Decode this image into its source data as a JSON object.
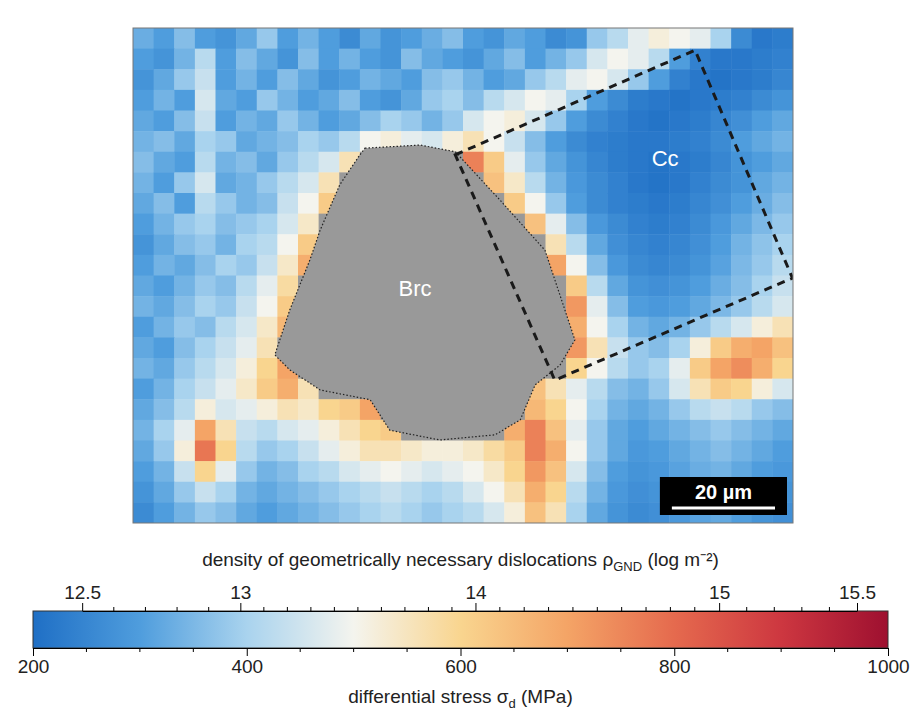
{
  "chart_data": {
    "type": "heatmap",
    "xlim": [
      0,
      128
    ],
    "ylim": [
      0,
      96
    ],
    "tick_labels": false,
    "cells": [
      [
        330,
        300,
        360,
        300,
        280,
        320,
        380,
        300,
        340,
        300,
        260,
        320,
        280,
        300,
        330,
        360,
        300,
        280,
        320,
        300,
        260,
        280,
        380,
        420,
        480,
        520,
        500,
        480,
        400,
        260,
        220,
        230
      ],
      [
        300,
        280,
        340,
        420,
        300,
        360,
        320,
        280,
        360,
        300,
        340,
        300,
        280,
        360,
        320,
        300,
        280,
        320,
        360,
        300,
        340,
        380,
        460,
        500,
        480,
        420,
        300,
        240,
        220,
        220,
        230,
        240
      ],
      [
        280,
        320,
        380,
        440,
        300,
        340,
        300,
        360,
        320,
        280,
        300,
        340,
        320,
        300,
        360,
        380,
        340,
        300,
        320,
        380,
        420,
        480,
        500,
        460,
        380,
        300,
        240,
        220,
        210,
        220,
        230,
        250
      ],
      [
        300,
        340,
        300,
        460,
        320,
        300,
        380,
        340,
        300,
        320,
        360,
        300,
        280,
        320,
        380,
        400,
        360,
        420,
        460,
        500,
        480,
        400,
        300,
        260,
        230,
        220,
        210,
        220,
        230,
        240,
        260,
        280
      ],
      [
        320,
        300,
        360,
        440,
        300,
        340,
        320,
        380,
        340,
        300,
        320,
        360,
        400,
        380,
        340,
        380,
        460,
        500,
        520,
        460,
        380,
        300,
        260,
        240,
        220,
        210,
        220,
        230,
        250,
        270,
        300,
        320
      ],
      [
        340,
        360,
        320,
        400,
        380,
        320,
        340,
        360,
        400,
        380,
        420,
        500,
        520,
        480,
        460,
        520,
        560,
        500,
        440,
        360,
        300,
        260,
        240,
        230,
        220,
        220,
        230,
        240,
        260,
        300,
        320,
        340
      ],
      [
        360,
        320,
        300,
        420,
        340,
        360,
        320,
        380,
        420,
        460,
        560,
        null,
        null,
        null,
        null,
        null,
        760,
        620,
        480,
        380,
        320,
        280,
        250,
        230,
        220,
        210,
        220,
        230,
        250,
        280,
        300,
        320
      ],
      [
        340,
        300,
        380,
        460,
        320,
        340,
        380,
        420,
        460,
        560,
        null,
        null,
        null,
        null,
        null,
        null,
        null,
        640,
        540,
        420,
        340,
        290,
        260,
        240,
        220,
        210,
        220,
        240,
        260,
        280,
        320,
        340
      ],
      [
        320,
        360,
        300,
        420,
        380,
        340,
        360,
        440,
        500,
        620,
        null,
        null,
        null,
        null,
        null,
        null,
        null,
        null,
        620,
        500,
        380,
        300,
        260,
        240,
        230,
        220,
        230,
        250,
        270,
        300,
        330,
        360
      ],
      [
        300,
        340,
        380,
        400,
        360,
        380,
        400,
        460,
        540,
        null,
        null,
        null,
        null,
        null,
        null,
        null,
        null,
        null,
        null,
        640,
        480,
        360,
        290,
        260,
        240,
        230,
        240,
        260,
        290,
        320,
        350,
        380
      ],
      [
        280,
        320,
        360,
        380,
        340,
        400,
        420,
        500,
        620,
        null,
        null,
        null,
        null,
        null,
        null,
        null,
        null,
        null,
        null,
        null,
        560,
        420,
        320,
        270,
        250,
        240,
        250,
        270,
        300,
        340,
        370,
        400
      ],
      [
        300,
        340,
        320,
        360,
        400,
        380,
        440,
        540,
        680,
        null,
        null,
        null,
        null,
        null,
        null,
        null,
        null,
        null,
        null,
        null,
        700,
        500,
        360,
        290,
        260,
        250,
        260,
        280,
        310,
        350,
        380,
        420
      ],
      [
        320,
        300,
        340,
        380,
        360,
        420,
        480,
        580,
        null,
        null,
        null,
        null,
        null,
        null,
        null,
        null,
        null,
        null,
        null,
        null,
        null,
        620,
        420,
        320,
        280,
        270,
        280,
        300,
        330,
        360,
        400,
        440
      ],
      [
        340,
        320,
        360,
        400,
        380,
        440,
        500,
        620,
        null,
        null,
        null,
        null,
        null,
        null,
        null,
        null,
        null,
        null,
        null,
        null,
        null,
        720,
        480,
        360,
        300,
        290,
        300,
        320,
        350,
        380,
        420,
        460
      ],
      [
        300,
        340,
        380,
        360,
        420,
        460,
        540,
        660,
        null,
        null,
        null,
        null,
        null,
        null,
        null,
        null,
        null,
        null,
        null,
        null,
        null,
        680,
        500,
        400,
        340,
        320,
        340,
        380,
        420,
        460,
        520,
        560
      ],
      [
        320,
        300,
        360,
        400,
        440,
        480,
        560,
        null,
        null,
        null,
        null,
        null,
        null,
        null,
        null,
        null,
        null,
        null,
        null,
        null,
        null,
        720,
        560,
        440,
        380,
        360,
        400,
        520,
        620,
        680,
        700,
        640
      ],
      [
        340,
        320,
        380,
        420,
        460,
        520,
        600,
        700,
        null,
        null,
        null,
        null,
        null,
        null,
        null,
        null,
        null,
        null,
        null,
        null,
        null,
        600,
        500,
        420,
        380,
        400,
        480,
        620,
        700,
        740,
        680,
        600
      ],
      [
        300,
        340,
        400,
        440,
        480,
        540,
        620,
        680,
        560,
        null,
        null,
        null,
        null,
        null,
        null,
        null,
        null,
        null,
        null,
        640,
        560,
        480,
        420,
        360,
        340,
        380,
        460,
        560,
        620,
        600,
        520,
        460
      ],
      [
        320,
        360,
        420,
        520,
        460,
        480,
        520,
        560,
        540,
        600,
        620,
        700,
        null,
        null,
        null,
        null,
        null,
        null,
        null,
        660,
        600,
        500,
        400,
        340,
        320,
        340,
        380,
        420,
        440,
        420,
        380,
        360
      ],
      [
        340,
        400,
        480,
        700,
        560,
        440,
        420,
        460,
        480,
        520,
        560,
        600,
        620,
        null,
        null,
        null,
        null,
        null,
        680,
        760,
        640,
        480,
        380,
        320,
        300,
        320,
        340,
        360,
        380,
        360,
        340,
        320
      ],
      [
        320,
        380,
        520,
        780,
        600,
        420,
        380,
        400,
        440,
        480,
        520,
        560,
        560,
        540,
        520,
        520,
        540,
        580,
        620,
        760,
        680,
        500,
        380,
        320,
        290,
        300,
        320,
        340,
        360,
        340,
        320,
        300
      ],
      [
        300,
        340,
        440,
        600,
        480,
        380,
        340,
        360,
        400,
        420,
        460,
        480,
        500,
        480,
        460,
        480,
        500,
        540,
        600,
        720,
        640,
        460,
        360,
        300,
        280,
        290,
        310,
        330,
        340,
        320,
        300,
        290
      ],
      [
        280,
        320,
        380,
        440,
        400,
        340,
        320,
        340,
        360,
        380,
        400,
        420,
        440,
        420,
        400,
        420,
        460,
        500,
        560,
        680,
        600,
        420,
        340,
        290,
        270,
        280,
        300,
        320,
        330,
        310,
        290,
        280
      ],
      [
        260,
        300,
        340,
        380,
        360,
        320,
        300,
        320,
        340,
        360,
        380,
        400,
        420,
        400,
        380,
        400,
        420,
        460,
        520,
        640,
        560,
        400,
        320,
        280,
        260,
        270,
        290,
        310,
        320,
        300,
        280,
        270
      ]
    ],
    "grain_outline": [
      [
        45.0,
        23.3
      ],
      [
        55.7,
        22.7
      ],
      [
        62.5,
        24.0
      ],
      [
        71.2,
        33.4
      ],
      [
        79.9,
        43.1
      ],
      [
        85.7,
        60.5
      ],
      [
        82.8,
        65.4
      ],
      [
        78.0,
        69.2
      ],
      [
        75.1,
        76.0
      ],
      [
        70.2,
        78.9
      ],
      [
        59.5,
        79.9
      ],
      [
        49.8,
        78.0
      ],
      [
        46.0,
        72.1
      ],
      [
        36.3,
        70.2
      ],
      [
        30.4,
        66.3
      ],
      [
        27.5,
        63.4
      ],
      [
        30.4,
        54.7
      ],
      [
        34.3,
        45.0
      ],
      [
        36.3,
        39.2
      ],
      [
        40.1,
        30.4
      ],
      [
        44.0,
        24.6
      ]
    ],
    "box_outline": [
      [
        62.5,
        24.6
      ],
      [
        109.0,
        4.3
      ],
      [
        127.9,
        48.5
      ],
      [
        81.8,
        68.3
      ]
    ],
    "annotations": [
      {
        "text": "Brc",
        "x": 54.7,
        "y": 50.8
      },
      {
        "text": "Cc",
        "x": 103.2,
        "y": 25.6
      }
    ],
    "scale_bar": {
      "label": "20 µm",
      "length": 20
    },
    "colorbar": {
      "range": [
        200,
        1000
      ],
      "colors": [
        "#1f6fc5",
        "#4f9ddd",
        "#a9d3ee",
        "#f4f4ee",
        "#f9d58f",
        "#f4a466",
        "#e56a4e",
        "#cd3740",
        "#9e1030"
      ],
      "label": [
        "differential stress σ",
        "d",
        " (MPa)"
      ],
      "ticks": [
        200,
        400,
        600,
        800,
        1000
      ],
      "minor_ticks": [
        250,
        300,
        350,
        450,
        500,
        550,
        650,
        700,
        750,
        850,
        900,
        950
      ],
      "density_label": [
        "density of geometrically necessary dislocations ρ",
        "GND",
        " (log m⁻²)"
      ],
      "density_ticks": [
        12.5,
        13,
        14,
        15,
        15.5
      ],
      "density_ticks_stress": [
        246,
        394,
        614,
        842,
        971
      ],
      "density_minor_ticks": [
        12.6,
        12.7,
        12.8,
        12.9,
        13.1,
        13.2,
        13.3,
        13.4,
        13.5,
        13.6,
        13.7,
        13.8,
        13.9,
        14.1,
        14.2,
        14.3,
        14.4,
        14.5,
        14.6,
        14.7,
        14.8,
        14.9,
        15.1,
        15.2,
        15.3,
        15.4
      ]
    }
  }
}
